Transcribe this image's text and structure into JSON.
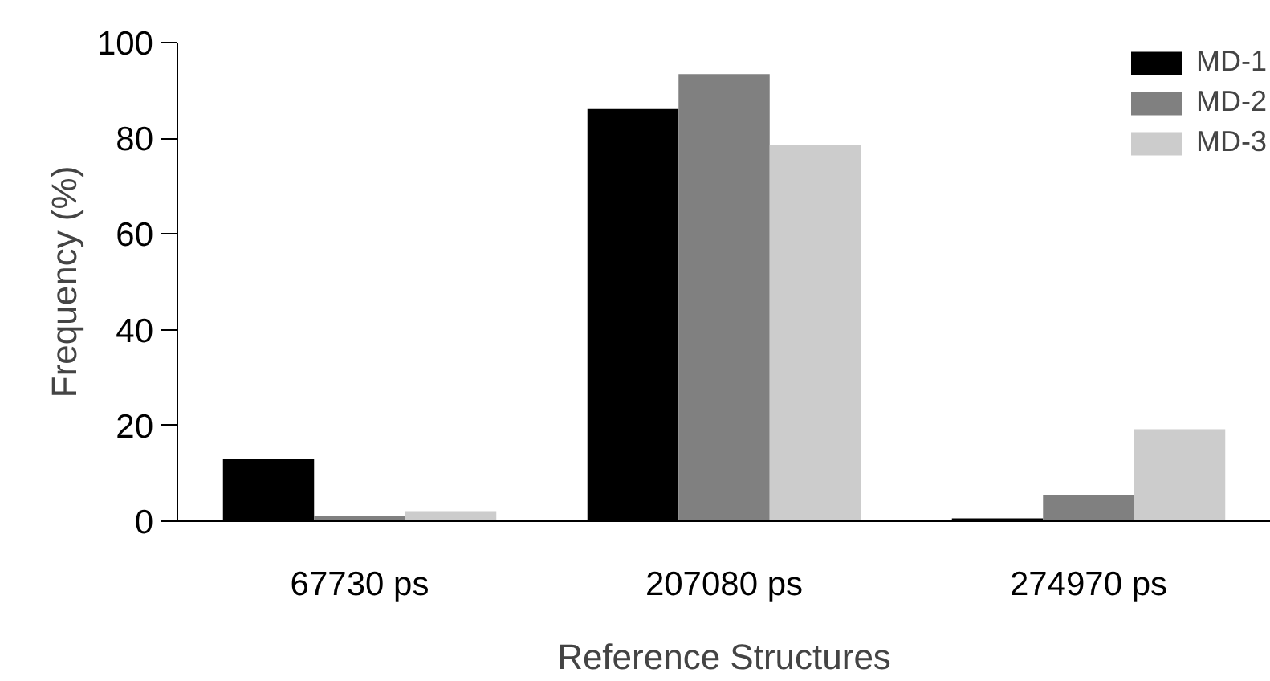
{
  "chart_data": {
    "type": "bar",
    "xlabel": "Reference Structures",
    "ylabel": "Frequency (%)",
    "categories": [
      "67730 ps",
      "207080 ps",
      "274970 ps"
    ],
    "series": [
      {
        "name": "MD-1",
        "color": "#000000",
        "values": [
          12.9,
          86.1,
          0.6
        ]
      },
      {
        "name": "MD-2",
        "color": "#808080",
        "values": [
          1.1,
          93.4,
          5.5
        ]
      },
      {
        "name": "MD-3",
        "color": "#cccccc",
        "values": [
          2.1,
          78.6,
          19.2
        ]
      }
    ],
    "ylim": [
      0,
      100
    ],
    "yticks": [
      0,
      20,
      40,
      60,
      80,
      100
    ],
    "grid": false,
    "legend": "top right"
  }
}
